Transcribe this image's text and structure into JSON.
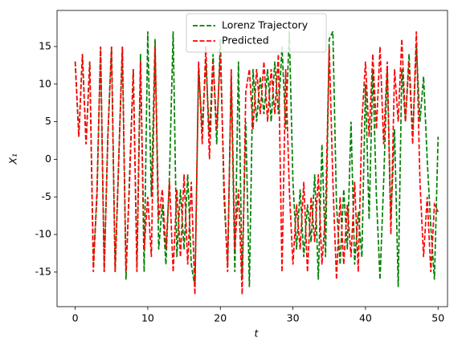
{
  "chart_data": {
    "type": "line",
    "x_label": "t",
    "y_label": "X₁",
    "x": [
      0,
      0.5,
      1,
      1.5,
      2,
      2.5,
      3,
      3.5,
      4,
      4.5,
      5,
      5.5,
      6,
      6.5,
      7,
      7.5,
      8,
      8.5,
      9,
      9.5,
      10,
      10.5,
      11,
      11.5,
      12,
      12.5,
      13,
      13.5,
      14,
      14.5,
      15,
      15.5,
      16,
      16.5,
      17,
      17.5,
      18,
      18.5,
      19,
      19.5,
      20,
      20.5,
      21,
      21.5,
      22,
      22.5,
      23,
      23.5,
      24,
      24.5,
      25,
      25.5,
      26,
      26.5,
      27,
      27.5,
      28,
      28.5,
      29,
      29.5,
      30,
      30.5,
      31,
      31.5,
      32,
      32.5,
      33,
      33.5,
      34,
      34.5,
      35,
      35.5,
      36,
      36.5,
      37,
      37.5,
      38,
      38.5,
      39,
      39.5,
      40,
      40.5,
      41,
      41.5,
      42,
      42.5,
      43,
      43.5,
      44,
      44.5,
      45,
      45.5,
      46,
      46.5,
      47,
      47.5,
      48,
      48.5,
      49,
      49.5,
      50
    ],
    "series": [
      {
        "name": "Lorenz Trajectory",
        "color": "#008000",
        "values": [
          13,
          3,
          14,
          2,
          13,
          -14,
          -5,
          15,
          -15,
          3,
          15,
          -15,
          0,
          15,
          -16,
          -2,
          12,
          -14,
          14,
          -15,
          17,
          -5,
          16,
          -12,
          -6,
          -14,
          -2,
          17,
          -13,
          -4,
          -12,
          -2,
          -14,
          -17,
          12,
          4,
          13,
          3,
          14,
          2,
          16,
          -5,
          -14,
          11,
          -15,
          13,
          -16,
          5,
          -17,
          12,
          5,
          11,
          6,
          12,
          5,
          13,
          6,
          15,
          4,
          17,
          -3,
          -12,
          -4,
          -13,
          -6,
          -11,
          -2,
          -16,
          2,
          -13,
          16,
          17,
          -6,
          -14,
          -4,
          -12,
          5,
          -14,
          -7,
          -13,
          10,
          -8,
          12,
          -5,
          -16,
          -3,
          12,
          -8,
          4,
          -17,
          12,
          5,
          14,
          3,
          15,
          5,
          11,
          0,
          -9,
          -16,
          3
        ]
      },
      {
        "name": "Predicted",
        "color": "#ff0000",
        "values": [
          13,
          3,
          14,
          2,
          13,
          -15,
          -4,
          15,
          -15,
          3,
          15,
          -15,
          0,
          15,
          -15,
          -3,
          12,
          -15,
          13,
          -12,
          -5,
          -13,
          15,
          -8,
          -4,
          -12,
          -3,
          -15,
          -4,
          -13,
          -2,
          -14,
          -3,
          -18,
          13,
          2,
          15,
          0,
          13,
          4,
          14,
          -3,
          -15,
          12,
          -12,
          -4,
          -18,
          9,
          12,
          4,
          12,
          6,
          13,
          5,
          12,
          6,
          14,
          -15,
          12,
          -4,
          -14,
          -6,
          -12,
          -3,
          -15,
          -5,
          -11,
          -2,
          -14,
          -7,
          15,
          -3,
          -16,
          -5,
          -14,
          -6,
          -13,
          -3,
          -15,
          5,
          13,
          3,
          14,
          4,
          15,
          2,
          13,
          -10,
          12,
          5,
          16,
          5,
          13,
          2,
          17,
          -3,
          -13,
          -5,
          -15,
          -6,
          -7
        ]
      }
    ],
    "xlim": [
      -2.5,
      51.3
    ],
    "ylim": [
      -19.6,
      19.8
    ],
    "xticks": [
      0,
      10,
      20,
      30,
      40,
      50
    ],
    "yticks": [
      -15,
      -10,
      -5,
      0,
      5,
      10,
      15
    ],
    "line_style": "dashed",
    "legend_position": "upper center"
  }
}
